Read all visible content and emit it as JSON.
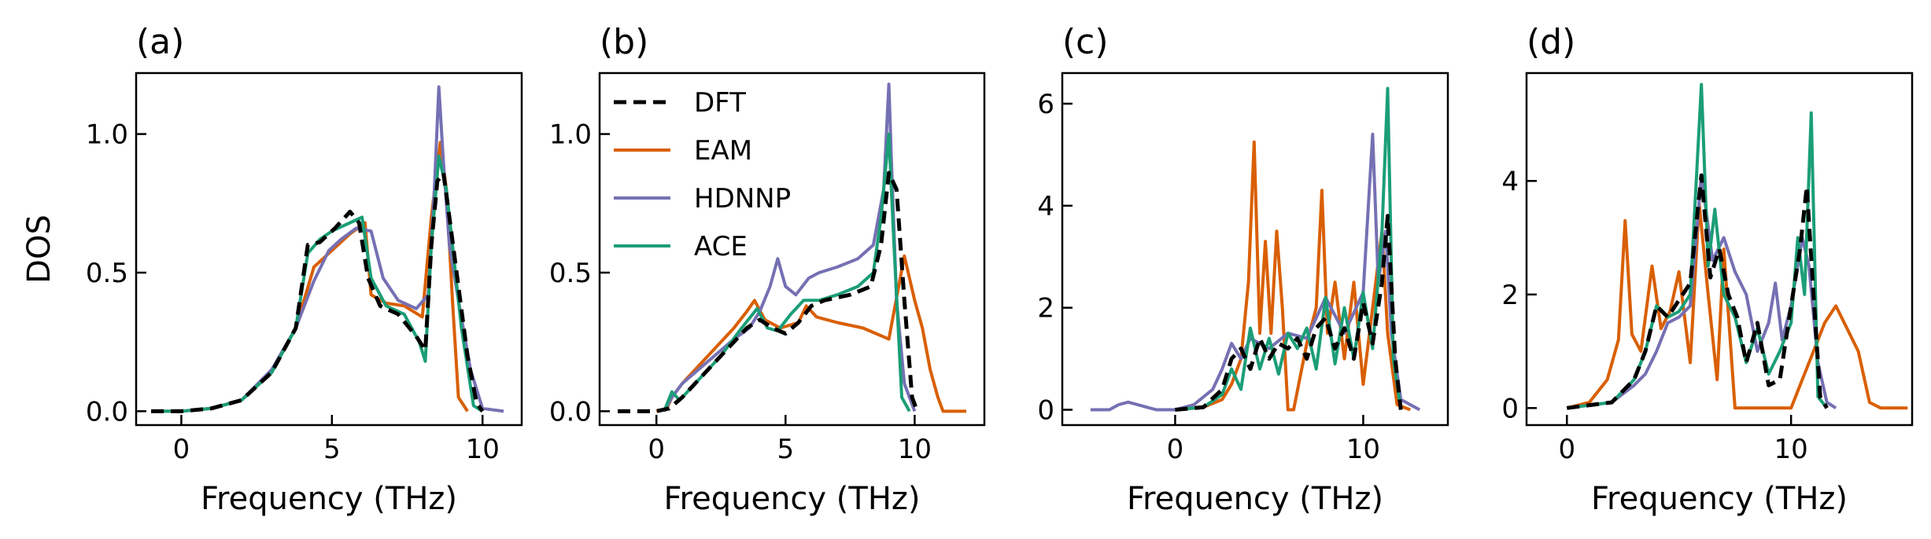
{
  "colors": {
    "DFT": "#000000",
    "EAM": "#d95f02",
    "HDNNP": "#7570b3",
    "ACE": "#1b9e77"
  },
  "legend": [
    "DFT",
    "EAM",
    "HDNNP",
    "ACE"
  ],
  "chart_data": [
    {
      "type": "line",
      "panel_label": "(a)",
      "xlabel": "Frequency (THz)",
      "ylabel": "DOS",
      "xlim": [
        -1.5,
        11.3
      ],
      "ylim": [
        -0.05,
        1.22
      ],
      "xticks": [
        0,
        5,
        10
      ],
      "yticks": [
        0.0,
        0.5,
        1.0
      ],
      "ytick_labels": [
        "0.0",
        "0.5",
        "1.0"
      ],
      "series": [
        {
          "name": "EAM",
          "x": [
            -1,
            0,
            1,
            2,
            3,
            3.8,
            4.4,
            5,
            5.6,
            6.1,
            6.3,
            6.8,
            7.4,
            8.0,
            8.3,
            8.6,
            8.8,
            9.0,
            9.2,
            9.5
          ],
          "y": [
            0,
            0,
            0.01,
            0.04,
            0.14,
            0.3,
            0.52,
            0.58,
            0.64,
            0.68,
            0.42,
            0.39,
            0.38,
            0.34,
            0.7,
            0.97,
            0.8,
            0.4,
            0.05,
            0
          ]
        },
        {
          "name": "HDNNP",
          "x": [
            -1,
            0,
            1,
            2,
            3,
            3.8,
            4.4,
            4.9,
            5.3,
            5.8,
            6.3,
            6.7,
            7.2,
            7.8,
            8.2,
            8.4,
            8.55,
            8.7,
            8.9,
            9.2,
            9.6,
            10.0,
            10.7
          ],
          "y": [
            0,
            0,
            0.01,
            0.04,
            0.15,
            0.3,
            0.47,
            0.58,
            0.62,
            0.66,
            0.65,
            0.48,
            0.4,
            0.37,
            0.42,
            0.8,
            1.17,
            0.9,
            0.6,
            0.4,
            0.15,
            0.01,
            0
          ]
        },
        {
          "name": "ACE",
          "x": [
            -1,
            0,
            1,
            2,
            3,
            3.8,
            4.2,
            4.6,
            5.0,
            5.6,
            6.0,
            6.3,
            6.8,
            7.4,
            7.9,
            8.1,
            8.3,
            8.55,
            8.8,
            9.0,
            9.3,
            9.7,
            10.0
          ],
          "y": [
            0,
            0,
            0.01,
            0.04,
            0.14,
            0.3,
            0.57,
            0.62,
            0.65,
            0.68,
            0.7,
            0.48,
            0.38,
            0.35,
            0.25,
            0.18,
            0.6,
            0.92,
            0.8,
            0.6,
            0.3,
            0.02,
            0
          ]
        },
        {
          "name": "DFT",
          "x": [
            -1,
            0,
            1,
            2,
            3,
            3.8,
            4.2,
            4.6,
            5.1,
            5.6,
            5.9,
            6.2,
            6.6,
            7.2,
            7.8,
            8.1,
            8.3,
            8.5,
            8.7,
            8.9,
            9.2,
            9.5,
            9.8,
            10.0
          ],
          "y": [
            0,
            0,
            0.01,
            0.04,
            0.14,
            0.3,
            0.6,
            0.61,
            0.66,
            0.72,
            0.68,
            0.48,
            0.38,
            0.35,
            0.27,
            0.22,
            0.6,
            0.83,
            0.86,
            0.7,
            0.45,
            0.2,
            0.03,
            0
          ]
        }
      ]
    },
    {
      "type": "line",
      "panel_label": "(b)",
      "xlabel": "Frequency (THz)",
      "ylabel": "",
      "xlim": [
        -2.2,
        12.7
      ],
      "ylim": [
        -0.05,
        1.22
      ],
      "xticks": [
        0,
        5,
        10
      ],
      "yticks": [
        0.0,
        0.5,
        1.0
      ],
      "ytick_labels": [
        "0.0",
        "0.5",
        "1.0"
      ],
      "series": [
        {
          "name": "EAM",
          "x": [
            0,
            0.4,
            0.6,
            1.0,
            2.0,
            3.0,
            3.5,
            3.8,
            4.2,
            4.8,
            5.5,
            5.8,
            6.2,
            7.0,
            8.0,
            9.0,
            9.6,
            10.0,
            10.3,
            10.6,
            10.9,
            11.1,
            12.0
          ],
          "y": [
            0,
            0.01,
            0.05,
            0.1,
            0.2,
            0.3,
            0.36,
            0.4,
            0.33,
            0.3,
            0.32,
            0.38,
            0.34,
            0.32,
            0.3,
            0.26,
            0.56,
            0.4,
            0.3,
            0.15,
            0.05,
            0,
            0
          ]
        },
        {
          "name": "HDNNP",
          "x": [
            0.3,
            0.6,
            1.0,
            2.0,
            3.0,
            3.6,
            4.0,
            4.4,
            4.7,
            5.0,
            5.4,
            5.9,
            6.3,
            7.0,
            7.8,
            8.4,
            8.8,
            9.0,
            9.1,
            9.3,
            9.6,
            10.0
          ],
          "y": [
            0,
            0.05,
            0.1,
            0.18,
            0.26,
            0.3,
            0.36,
            0.45,
            0.55,
            0.45,
            0.42,
            0.48,
            0.5,
            0.52,
            0.55,
            0.6,
            0.8,
            1.18,
            0.9,
            0.4,
            0.1,
            0
          ]
        },
        {
          "name": "ACE",
          "x": [
            0.3,
            0.6,
            0.9,
            1.5,
            2.5,
            3.3,
            3.9,
            4.3,
            4.7,
            5.2,
            5.7,
            6.3,
            7.0,
            7.8,
            8.4,
            8.7,
            8.9,
            9.0,
            9.2,
            9.5,
            9.8
          ],
          "y": [
            0,
            0.07,
            0.04,
            0.1,
            0.2,
            0.3,
            0.37,
            0.3,
            0.29,
            0.35,
            0.4,
            0.4,
            0.42,
            0.45,
            0.5,
            0.7,
            0.9,
            1.0,
            0.6,
            0.05,
            0
          ]
        },
        {
          "name": "DFT",
          "x": [
            -1.5,
            0,
            0.5,
            1.0,
            2.0,
            3.0,
            3.5,
            4.0,
            4.5,
            5.0,
            5.5,
            6.0,
            6.5,
            7.5,
            8.3,
            8.7,
            9.0,
            9.3,
            9.6,
            9.9,
            10.1
          ],
          "y": [
            0,
            0,
            0.01,
            0.05,
            0.15,
            0.25,
            0.3,
            0.33,
            0.3,
            0.28,
            0.32,
            0.38,
            0.4,
            0.42,
            0.45,
            0.6,
            0.86,
            0.8,
            0.4,
            0.05,
            0
          ]
        }
      ]
    },
    {
      "type": "line",
      "panel_label": "(c)",
      "xlabel": "Frequency (THz)",
      "ylabel": "",
      "xlim": [
        -6.0,
        14.5
      ],
      "ylim": [
        -0.3,
        6.6
      ],
      "xticks": [
        0,
        10
      ],
      "yticks": [
        0,
        2,
        4,
        6
      ],
      "ytick_labels": [
        "0",
        "2",
        "4",
        "6"
      ],
      "series": [
        {
          "name": "HDNNP",
          "x": [
            -4.5,
            -3.5,
            -3.0,
            -2.5,
            -2.0,
            -1.5,
            -1.0,
            0,
            1,
            2.0,
            2.5,
            3.0,
            3.5,
            4.0,
            5.0,
            6.0,
            7.0,
            7.5,
            8.0,
            9.0,
            10.0,
            10.5,
            10.8,
            11.2,
            11.5,
            12.0,
            13.0
          ],
          "y": [
            0,
            0,
            0.1,
            0.15,
            0.1,
            0.05,
            0,
            0,
            0.1,
            0.4,
            0.8,
            1.3,
            1.0,
            1.4,
            1.2,
            1.5,
            1.4,
            1.8,
            2.2,
            1.5,
            2.3,
            5.4,
            2.5,
            3.5,
            1.5,
            0.2,
            0
          ]
        },
        {
          "name": "EAM",
          "x": [
            0,
            1.5,
            2.5,
            3.0,
            3.5,
            3.9,
            4.2,
            4.5,
            4.8,
            5.1,
            5.4,
            5.7,
            6.0,
            6.3,
            7.0,
            7.5,
            7.8,
            8.1,
            8.5,
            9.0,
            9.5,
            10.0,
            10.5,
            11.0,
            11.3,
            11.8,
            12.5
          ],
          "y": [
            0,
            0.05,
            0.2,
            0.5,
            1.0,
            2.5,
            5.25,
            1.5,
            3.3,
            1.5,
            3.5,
            2.0,
            0.0,
            0.0,
            1.3,
            2.0,
            4.3,
            1.5,
            2.5,
            1.0,
            2.5,
            0.5,
            2.0,
            3.5,
            1.5,
            0.1,
            0
          ]
        },
        {
          "name": "ACE",
          "x": [
            0,
            1.5,
            2.5,
            3.0,
            3.5,
            4.0,
            4.5,
            5.0,
            5.5,
            6.0,
            6.5,
            7.0,
            7.5,
            8.0,
            8.5,
            9.0,
            9.5,
            10.0,
            10.5,
            11.0,
            11.3,
            11.6,
            12.0
          ],
          "y": [
            0,
            0.05,
            0.3,
            0.8,
            0.4,
            1.6,
            0.8,
            1.4,
            0.7,
            1.5,
            1.2,
            1.6,
            0.8,
            2.2,
            0.9,
            2.0,
            1.0,
            2.3,
            1.2,
            3.5,
            6.3,
            1.0,
            0
          ]
        },
        {
          "name": "DFT",
          "x": [
            0,
            1.5,
            2.5,
            3.0,
            3.5,
            4.0,
            4.5,
            5.0,
            5.5,
            6.0,
            6.5,
            7.0,
            7.5,
            8.0,
            8.5,
            9.0,
            9.5,
            10.0,
            10.5,
            11.0,
            11.3,
            11.7,
            12.0
          ],
          "y": [
            0,
            0.05,
            0.4,
            1.0,
            1.2,
            0.8,
            1.4,
            1.0,
            1.3,
            1.2,
            1.4,
            1.0,
            1.6,
            1.8,
            1.2,
            1.6,
            1.0,
            2.1,
            1.3,
            2.5,
            3.8,
            1.0,
            0
          ]
        }
      ]
    },
    {
      "type": "line",
      "panel_label": "(d)",
      "xlabel": "Frequency (THz)",
      "ylabel": "",
      "xlim": [
        -1.8,
        15.4
      ],
      "ylim": [
        -0.3,
        5.9
      ],
      "xticks": [
        0,
        10
      ],
      "yticks": [
        0,
        2,
        4
      ],
      "ytick_labels": [
        "0",
        "2",
        "4"
      ],
      "series": [
        {
          "name": "EAM",
          "x": [
            0,
            1.0,
            1.8,
            2.3,
            2.6,
            2.9,
            3.3,
            3.8,
            4.2,
            4.6,
            5.0,
            5.5,
            5.9,
            6.3,
            6.7,
            7.0,
            7.5,
            8.0,
            9.0,
            9.5,
            10.0,
            10.5,
            11.0,
            11.5,
            12.0,
            12.5,
            13.0,
            13.5,
            14.0,
            15.2
          ],
          "y": [
            0,
            0.1,
            0.5,
            1.2,
            3.3,
            1.3,
            1.0,
            2.5,
            1.4,
            1.7,
            2.4,
            0.8,
            3.6,
            2.0,
            0.5,
            2.8,
            0.0,
            0.0,
            0.0,
            0.0,
            0.0,
            0.5,
            1.0,
            1.5,
            1.8,
            1.4,
            1.0,
            0.1,
            0,
            0
          ]
        },
        {
          "name": "HDNNP",
          "x": [
            0,
            2.0,
            3.0,
            3.5,
            4.0,
            4.5,
            5.0,
            5.5,
            6.0,
            6.5,
            7.0,
            7.5,
            8.0,
            8.5,
            9.0,
            9.3,
            9.6,
            10.0,
            10.5,
            10.8,
            11.2,
            11.6,
            12.0
          ],
          "y": [
            0,
            0.1,
            0.4,
            0.6,
            1.0,
            1.5,
            1.6,
            1.8,
            4.1,
            2.6,
            3.0,
            2.4,
            2.0,
            1.0,
            1.5,
            2.2,
            1.2,
            1.8,
            3.0,
            2.5,
            0.8,
            0.1,
            0
          ]
        },
        {
          "name": "ACE",
          "x": [
            0,
            2.0,
            3.0,
            3.5,
            4.0,
            4.5,
            5.0,
            5.5,
            6.0,
            6.3,
            6.6,
            7.0,
            7.5,
            8.0,
            8.5,
            9.0,
            9.5,
            10.0,
            10.3,
            10.6,
            10.9,
            11.2,
            11.6
          ],
          "y": [
            0,
            0.1,
            0.5,
            1.0,
            1.8,
            1.6,
            1.7,
            2.0,
            5.7,
            2.5,
            3.5,
            2.0,
            1.6,
            0.8,
            1.4,
            0.6,
            1.0,
            1.5,
            3.0,
            2.0,
            5.2,
            0.2,
            0
          ]
        },
        {
          "name": "DFT",
          "x": [
            0,
            2.0,
            3.0,
            3.5,
            4.0,
            4.5,
            5.0,
            5.5,
            6.0,
            6.4,
            6.8,
            7.2,
            7.6,
            8.0,
            8.5,
            9.0,
            9.5,
            10.0,
            10.4,
            10.7,
            11.0,
            11.3,
            11.6
          ],
          "y": [
            0,
            0.1,
            0.5,
            1.0,
            1.8,
            1.6,
            1.9,
            2.2,
            4.1,
            2.3,
            2.8,
            2.0,
            1.6,
            0.8,
            1.5,
            0.4,
            0.5,
            1.8,
            2.8,
            3.9,
            2.0,
            0.2,
            0
          ]
        }
      ]
    }
  ]
}
